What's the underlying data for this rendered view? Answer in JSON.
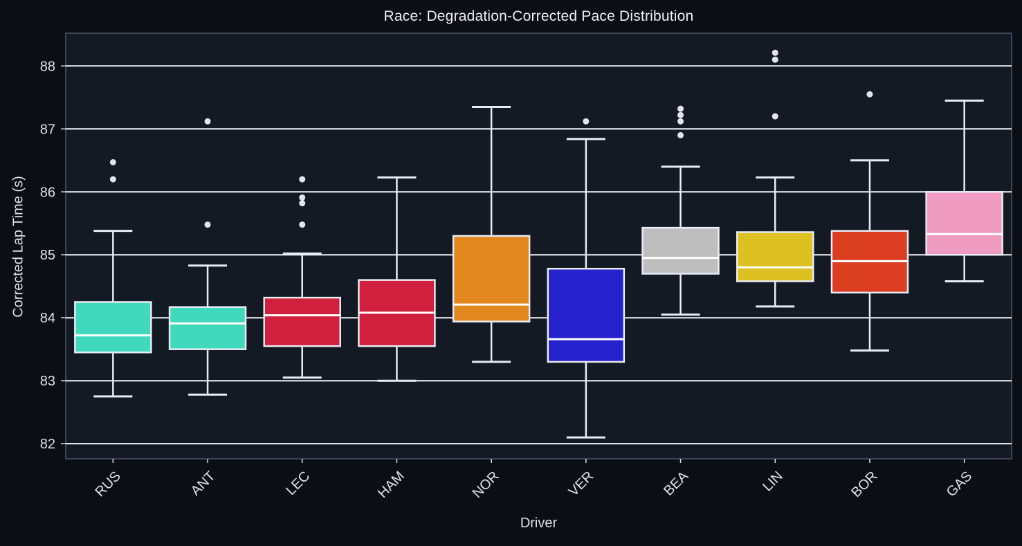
{
  "chart_data": {
    "type": "boxplot",
    "title": "Race: Degradation-Corrected Pace Distribution",
    "xlabel": "Driver",
    "ylabel": "Corrected Lap Time (s)",
    "ylim": [
      81.76,
      88.52
    ],
    "yticks": [
      82,
      83,
      84,
      85,
      86,
      87,
      88
    ],
    "grid": "horizontal-white",
    "legend": "none",
    "categories": [
      "RUS",
      "ANT",
      "LEC",
      "HAM",
      "NOR",
      "VER",
      "BEA",
      "LIN",
      "BOR",
      "GAS"
    ],
    "series": [
      {
        "driver": "RUS",
        "color": "#40d9be",
        "whisker_low": 82.75,
        "q1": 83.45,
        "median": 83.72,
        "q3": 84.25,
        "whisker_high": 85.38,
        "outliers": [
          86.2,
          86.47
        ]
      },
      {
        "driver": "ANT",
        "color": "#40d9be",
        "whisker_low": 82.78,
        "q1": 83.5,
        "median": 83.91,
        "q3": 84.17,
        "whisker_high": 84.83,
        "outliers": [
          85.48,
          87.12
        ]
      },
      {
        "driver": "LEC",
        "color": "#d0203e",
        "whisker_low": 83.05,
        "q1": 83.55,
        "median": 84.04,
        "q3": 84.32,
        "whisker_high": 85.02,
        "outliers": [
          85.48,
          85.82,
          85.91,
          86.2
        ]
      },
      {
        "driver": "HAM",
        "color": "#d0203e",
        "whisker_low": 83.0,
        "q1": 83.55,
        "median": 84.08,
        "q3": 84.6,
        "whisker_high": 86.23,
        "outliers": []
      },
      {
        "driver": "NOR",
        "color": "#e2861e",
        "whisker_low": 83.3,
        "q1": 83.94,
        "median": 84.21,
        "q3": 85.3,
        "whisker_high": 87.35,
        "outliers": []
      },
      {
        "driver": "VER",
        "color": "#2421cd",
        "whisker_low": 82.1,
        "q1": 83.3,
        "median": 83.66,
        "q3": 84.78,
        "whisker_high": 86.84,
        "outliers": [
          87.12
        ]
      },
      {
        "driver": "BEA",
        "color": "#bebebe",
        "whisker_low": 84.05,
        "q1": 84.7,
        "median": 84.95,
        "q3": 85.43,
        "whisker_high": 86.4,
        "outliers": [
          86.9,
          87.12,
          87.22,
          87.32
        ]
      },
      {
        "driver": "LIN",
        "color": "#ddc021",
        "whisker_low": 84.18,
        "q1": 84.58,
        "median": 84.8,
        "q3": 85.36,
        "whisker_high": 86.23,
        "outliers": [
          87.2,
          88.1,
          88.21
        ]
      },
      {
        "driver": "BOR",
        "color": "#dc3e22",
        "whisker_low": 83.48,
        "q1": 84.4,
        "median": 84.9,
        "q3": 85.38,
        "whisker_high": 86.5,
        "outliers": [
          87.55
        ]
      },
      {
        "driver": "GAS",
        "color": "#f09cc0",
        "whisker_low": 84.58,
        "q1": 85.0,
        "median": 85.33,
        "q3": 86.0,
        "whisker_high": 87.45,
        "outliers": []
      }
    ],
    "theme": {
      "figure_background": "#0b0e15",
      "plot_background": "#141a24",
      "plot_border": "#3d4455",
      "grid_color": "#f2f4f7",
      "element_stroke": "#e8ecf4",
      "median_color": "#ffffff",
      "outlier_color": "#e3e5ea",
      "text_color": "#dde1e8"
    }
  }
}
